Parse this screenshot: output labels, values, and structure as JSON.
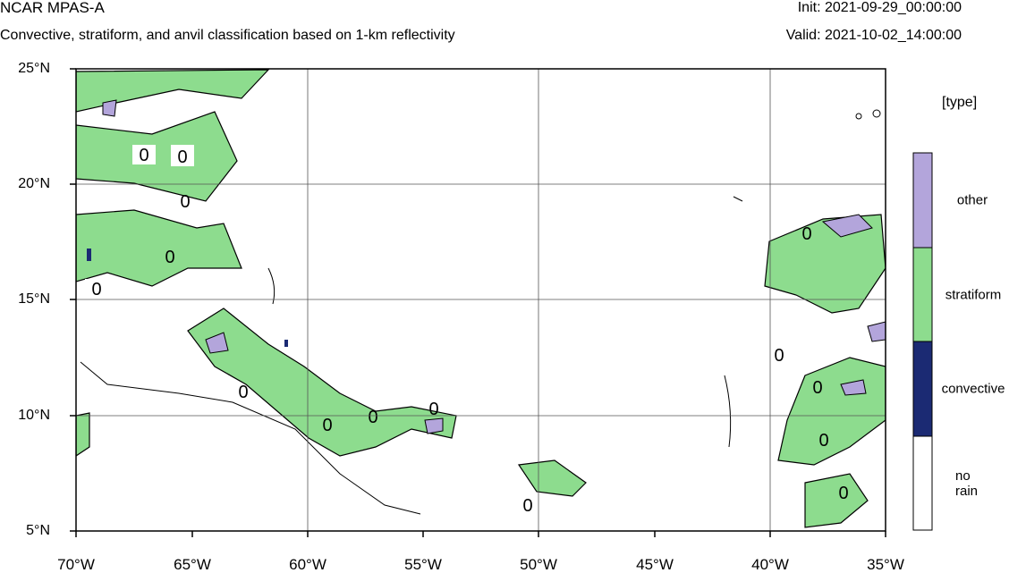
{
  "header": {
    "model": "NCAR MPAS-A",
    "description": "Convective, stratiform, and anvil classification based on 1-km reflectivity",
    "init": "Init: 2021-09-29_00:00:00",
    "valid": "Valid: 2021-10-02_14:00:00"
  },
  "axes": {
    "y_ticks": [
      "25°N",
      "20°N",
      "15°N",
      "10°N",
      "5°N"
    ],
    "x_ticks": [
      "70°W",
      "65°W",
      "60°W",
      "55°W",
      "50°W",
      "45°W",
      "40°W",
      "35°W"
    ]
  },
  "legend": {
    "title": "[type]",
    "entries": [
      {
        "label": "other",
        "color": "#b3a5db"
      },
      {
        "label": "stratiform",
        "color": "#8ddc8e"
      },
      {
        "label": "convective",
        "color": "#1b2a73"
      },
      {
        "label": "no rain",
        "color": "#ffffff"
      }
    ]
  },
  "contour_label": "0",
  "colors": {
    "stratiform": "#8ddc8e",
    "other": "#b3a5db",
    "convective": "#1b2a73"
  }
}
